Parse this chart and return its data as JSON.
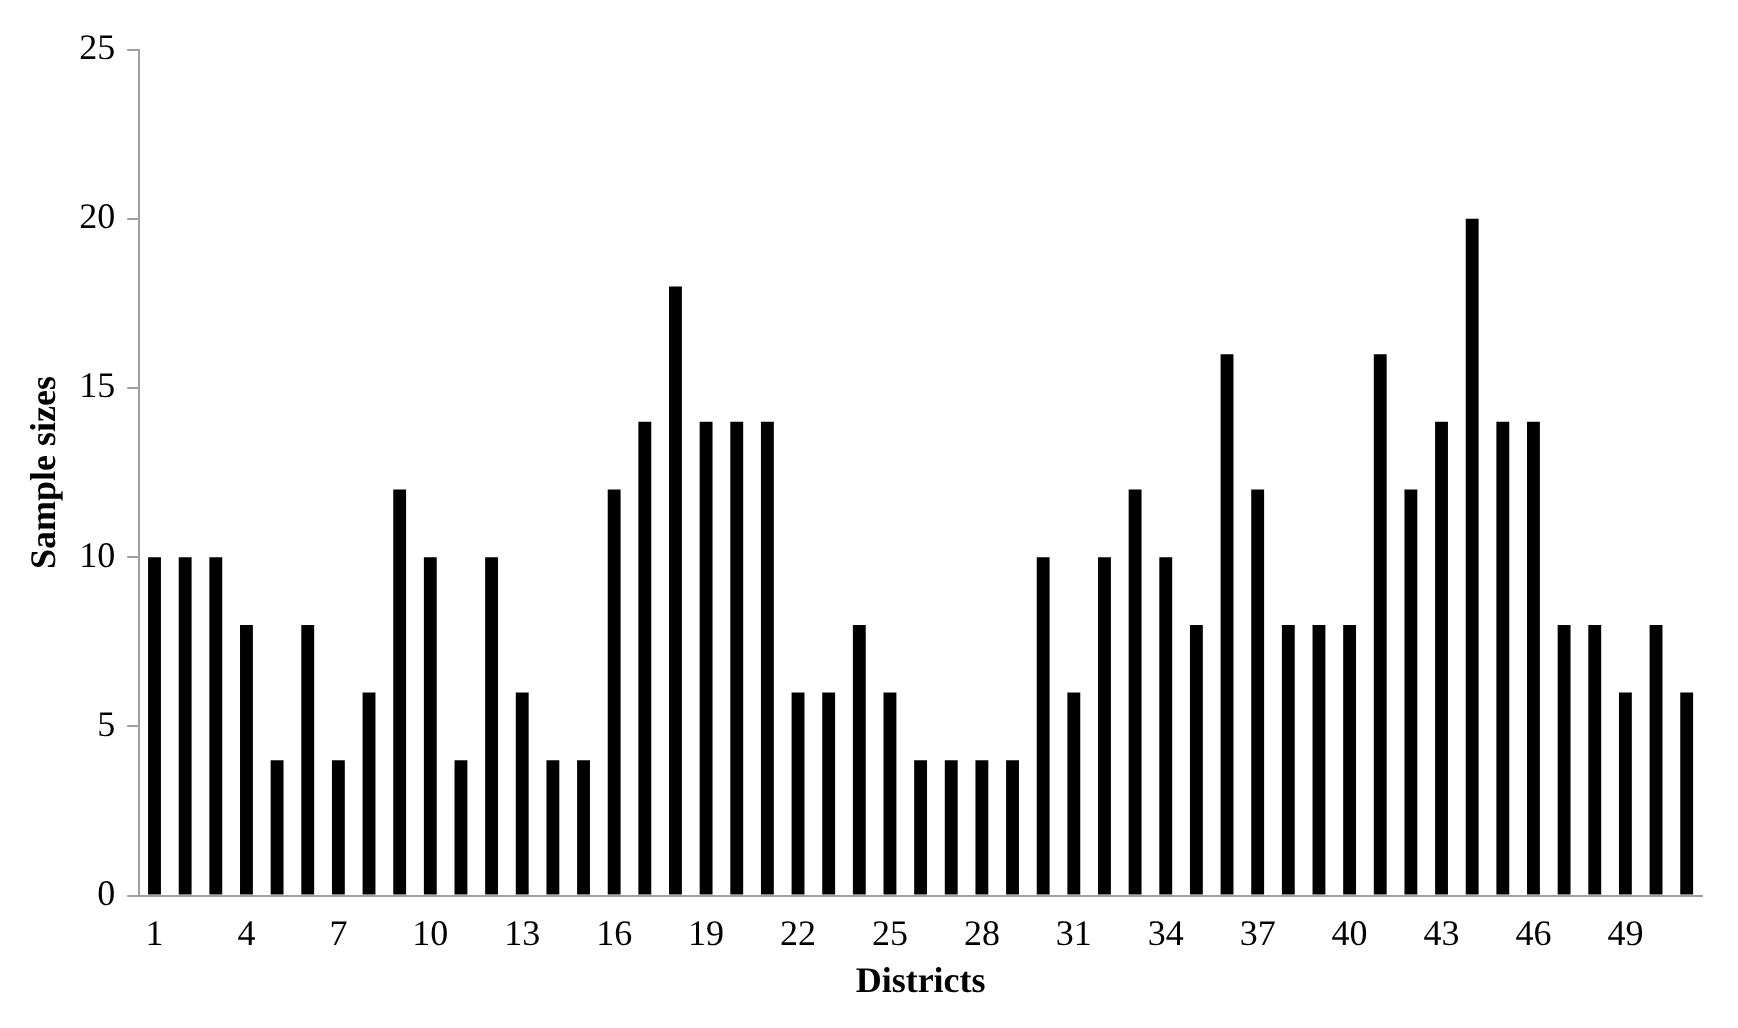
{
  "chart_data": {
    "type": "bar",
    "xlabel": "Districts",
    "ylabel": "Sample sizes",
    "categories": [
      "1",
      null,
      null,
      "4",
      null,
      null,
      "7",
      null,
      null,
      "10",
      null,
      null,
      "13",
      null,
      null,
      "16",
      null,
      null,
      "19",
      null,
      null,
      "22",
      null,
      null,
      "25",
      null,
      null,
      "28",
      null,
      null,
      "31",
      null,
      null,
      "34",
      null,
      null,
      "37",
      null,
      null,
      "40",
      null,
      null,
      "43",
      null,
      null,
      "46",
      null,
      null,
      "49",
      null,
      null
    ],
    "values": [
      10,
      10,
      10,
      8,
      4,
      8,
      4,
      6,
      12,
      10,
      4,
      10,
      6,
      4,
      4,
      12,
      14,
      18,
      14,
      14,
      14,
      6,
      6,
      8,
      6,
      4,
      4,
      4,
      4,
      10,
      6,
      10,
      12,
      10,
      8,
      16,
      12,
      8,
      8,
      8,
      16,
      12,
      14,
      20,
      14,
      14,
      8,
      8,
      6,
      8,
      6
    ],
    "color": "#000000",
    "ylim": [
      0,
      25
    ],
    "yticks": [
      0,
      5,
      10,
      15,
      20,
      25
    ],
    "grid": false,
    "legend": false
  }
}
